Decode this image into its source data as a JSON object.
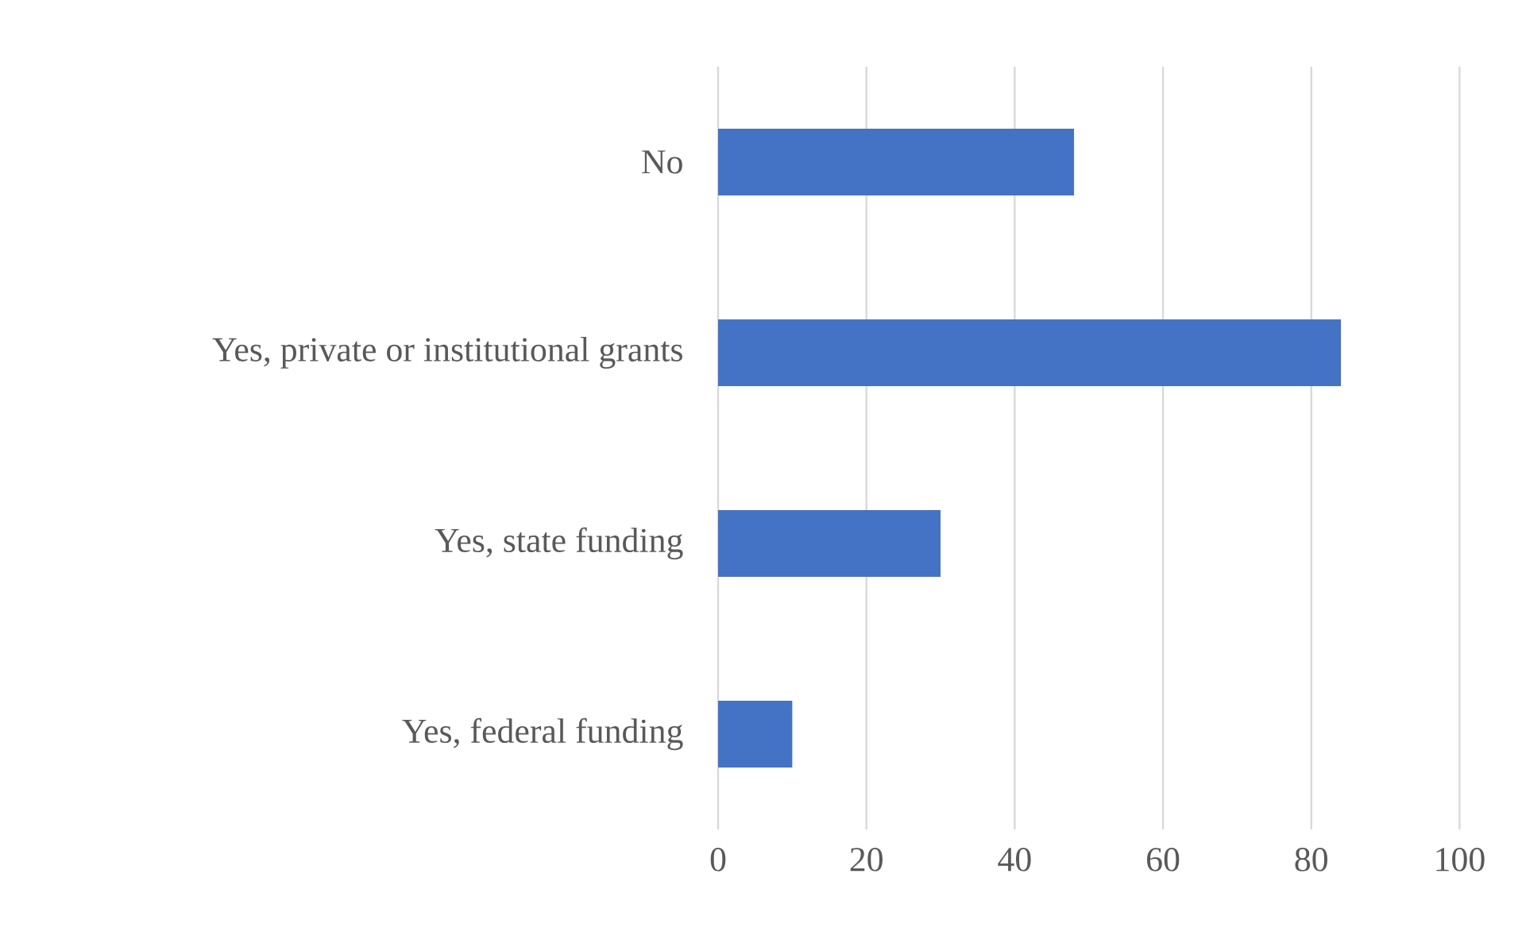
{
  "chart_data": {
    "type": "bar",
    "orientation": "horizontal",
    "categories": [
      "No",
      "Yes, private or institutional grants",
      "Yes, state funding",
      "Yes, federal funding"
    ],
    "values": [
      48,
      84,
      30,
      10
    ],
    "color": "#4472c4",
    "xlim": [
      0,
      100
    ],
    "xticks": [
      0,
      20,
      40,
      60,
      80,
      100
    ],
    "grid": "x"
  }
}
